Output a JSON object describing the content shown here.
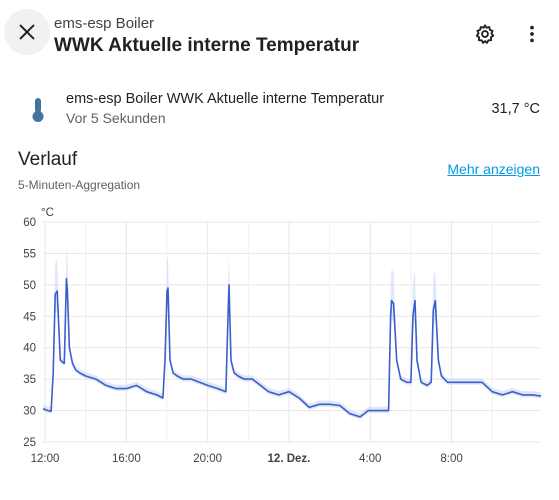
{
  "header": {
    "subtitle": "ems-esp Boiler",
    "title": "WWK Aktuelle interne Temperatur",
    "icons": [
      "close-icon",
      "gear-icon",
      "more-vertical-icon"
    ]
  },
  "entity": {
    "icon": "thermometer-icon",
    "name": "ems-esp Boiler WWK Aktuelle interne Temperatur",
    "last_changed": "Vor 5 Sekunden",
    "value": "31,7 °C"
  },
  "history": {
    "title": "Verlauf",
    "subtitle": "5-Minuten-Aggregation",
    "more_label": "Mehr anzeigen"
  },
  "colors": {
    "line": "#3a5fcd",
    "band": "#c9d3f2",
    "grid": "#e6e6e6",
    "link": "#039be5"
  },
  "chart_data": {
    "type": "line",
    "ylabel": "°C",
    "ylim": [
      25,
      60
    ],
    "yticks": [
      25,
      30,
      35,
      40,
      45,
      50,
      55,
      60
    ],
    "xlim": [
      11.9,
      36.4
    ],
    "xticks": [
      {
        "v": 12,
        "label": "12:00",
        "bold": false
      },
      {
        "v": 16,
        "label": "16:00",
        "bold": false
      },
      {
        "v": 20,
        "label": "20:00",
        "bold": false
      },
      {
        "v": 24,
        "label": "12. Dez.",
        "bold": true
      },
      {
        "v": 28,
        "label": "4:00",
        "bold": false
      },
      {
        "v": 32,
        "label": "8:00",
        "bold": false
      }
    ],
    "series": [
      {
        "x": [
          11.9,
          12.15,
          12.3,
          12.4,
          12.5,
          12.6,
          12.75,
          12.95,
          13.05,
          13.1,
          13.2,
          13.35,
          13.5,
          13.7,
          14.0,
          14.5,
          15.0,
          15.5,
          16.0,
          16.5,
          17.0,
          17.5,
          17.8,
          17.9,
          18.0,
          18.05,
          18.15,
          18.3,
          18.5,
          18.8,
          19.2,
          19.6,
          20.0,
          20.5,
          20.9,
          21.0,
          21.05,
          21.15,
          21.3,
          21.5,
          21.8,
          22.2,
          22.6,
          23.0,
          23.5,
          24.0,
          24.5,
          25.0,
          25.5,
          26.0,
          26.5,
          27.0,
          27.5,
          27.9,
          28.2,
          28.5,
          28.9,
          29.0,
          29.05,
          29.15,
          29.3,
          29.5,
          29.8,
          30.0,
          30.1,
          30.2,
          30.3,
          30.5,
          30.8,
          31.0,
          31.1,
          31.2,
          31.35,
          31.5,
          31.8,
          32.5,
          33.0,
          33.5,
          34.0,
          34.5,
          35.0,
          35.5,
          36.0,
          36.4
        ],
        "y": [
          30.3,
          30.0,
          29.9,
          36.0,
          48.5,
          49.0,
          38.0,
          37.5,
          51.0,
          49.0,
          40.0,
          37.5,
          36.5,
          36.0,
          35.5,
          35.0,
          34.0,
          33.5,
          33.5,
          34.0,
          33.0,
          32.5,
          32.0,
          38.0,
          49.0,
          49.5,
          38.0,
          36.0,
          35.5,
          35.0,
          35.0,
          34.5,
          34.0,
          33.5,
          33.0,
          45.0,
          50.0,
          38.0,
          36.0,
          35.5,
          35.0,
          35.0,
          34.0,
          33.0,
          32.5,
          33.0,
          32.0,
          30.5,
          31.0,
          31.0,
          30.8,
          29.5,
          29.0,
          30.0,
          30.0,
          30.0,
          30.0,
          45.0,
          47.5,
          47.0,
          38.0,
          35.0,
          34.5,
          34.5,
          45.0,
          47.5,
          38.0,
          34.5,
          34.0,
          34.5,
          46.0,
          47.5,
          38.0,
          35.5,
          34.5,
          34.5,
          34.5,
          34.5,
          33.0,
          32.5,
          33.0,
          32.5,
          32.5,
          32.3
        ]
      }
    ]
  }
}
